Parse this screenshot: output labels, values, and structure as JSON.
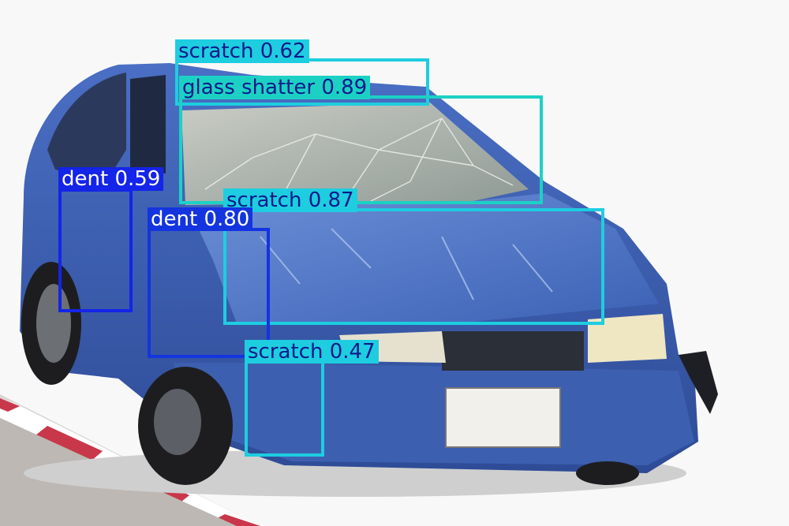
{
  "detections": [
    {
      "label": "scratch 0.62",
      "color": "#1ecde0",
      "text_color": "#0b1a8a"
    },
    {
      "label": "glass shatter 0.89",
      "color": "#1cd1c4",
      "text_color": "#0b1a8a"
    },
    {
      "label": "dent 0.59",
      "color": "#1424e8",
      "text_color": "#ffffff"
    },
    {
      "label": "scratch 0.87",
      "color": "#1ecde0",
      "text_color": "#0b1a8a"
    },
    {
      "label": "dent 0.80",
      "color": "#1434e0",
      "text_color": "#ffffff"
    },
    {
      "label": "scratch 0.47",
      "color": "#1ecde0",
      "text_color": "#0b1a8a"
    }
  ],
  "colors": {
    "car_body": "#3f63b8",
    "background": "#f7f7f7",
    "curb_red": "#c8384a"
  }
}
